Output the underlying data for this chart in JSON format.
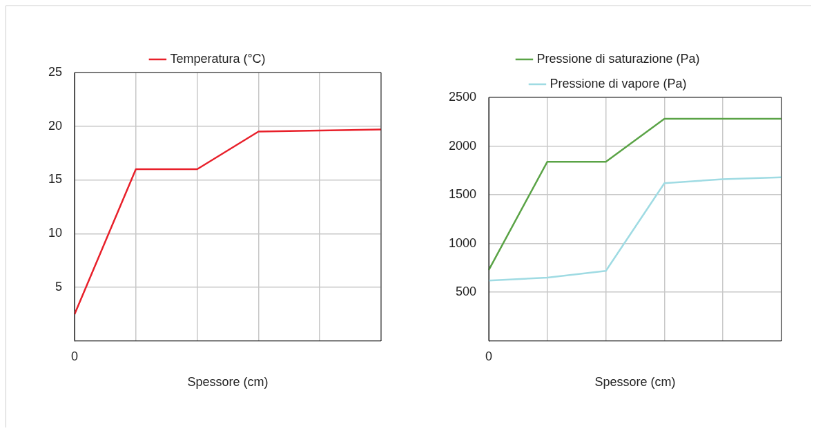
{
  "chart_data": [
    {
      "type": "line",
      "xlabel": "Spessore (cm)",
      "categories": [
        "0",
        null,
        null,
        null,
        null,
        null
      ],
      "ylim": [
        0,
        25
      ],
      "yticks": [
        5,
        10,
        15,
        20,
        25
      ],
      "grid": true,
      "legend": "top",
      "series": [
        {
          "name": "Temperatura (°C)",
          "color": "#e8202a",
          "values": [
            2.5,
            16,
            16,
            19.5,
            19.6,
            19.7
          ]
        }
      ]
    },
    {
      "type": "line",
      "xlabel": "Spessore (cm)",
      "categories": [
        "0",
        null,
        null,
        null,
        null,
        null
      ],
      "ylim": [
        0,
        2500
      ],
      "yticks": [
        500,
        1000,
        1500,
        2000,
        2500
      ],
      "grid": true,
      "legend": "top",
      "series": [
        {
          "name": "Pressione di saturazione (Pa)",
          "color": "#5aa346",
          "values": [
            730,
            1840,
            1840,
            2280,
            2280,
            2280
          ]
        },
        {
          "name": "Pressione di vapore (Pa)",
          "color": "#9fdbe3",
          "values": [
            620,
            650,
            720,
            1620,
            1660,
            1680
          ]
        }
      ]
    }
  ]
}
